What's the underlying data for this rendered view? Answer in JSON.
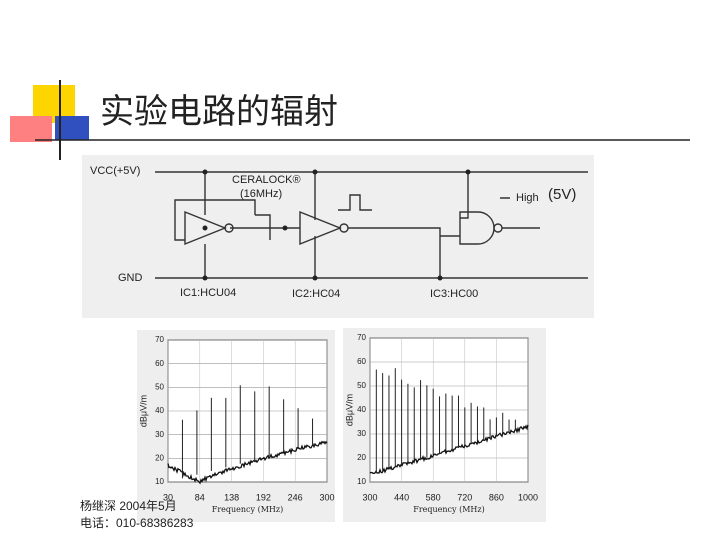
{
  "header": {
    "title": "实验电路的辐射"
  },
  "circuit": {
    "vcc": "VCC(+5V)",
    "resonator": "CERALOCK®",
    "frequency": "(16MHz)",
    "high": "High",
    "high_voltage": "(5V)",
    "gnd": "GND",
    "ic1": "IC1:HCU04",
    "ic2": "IC2:HC04",
    "ic3": "IC3:HC00"
  },
  "plots": [
    {
      "y_label": "dBμV/m",
      "x_label": "Frequency (MHz)",
      "yticks": [
        70,
        60,
        50,
        40,
        30,
        20,
        10
      ],
      "xticks": [
        30,
        84,
        138,
        192,
        246,
        300
      ]
    },
    {
      "y_label": "dBμV/m",
      "x_label": "Frequency (MHz)",
      "yticks": [
        70,
        60,
        50,
        40,
        30,
        20,
        10
      ],
      "xticks": [
        300,
        440,
        580,
        720,
        860,
        1000
      ]
    }
  ],
  "footer": {
    "author": "杨继深   2004年5月",
    "phone": "电话：010-68386283"
  }
}
